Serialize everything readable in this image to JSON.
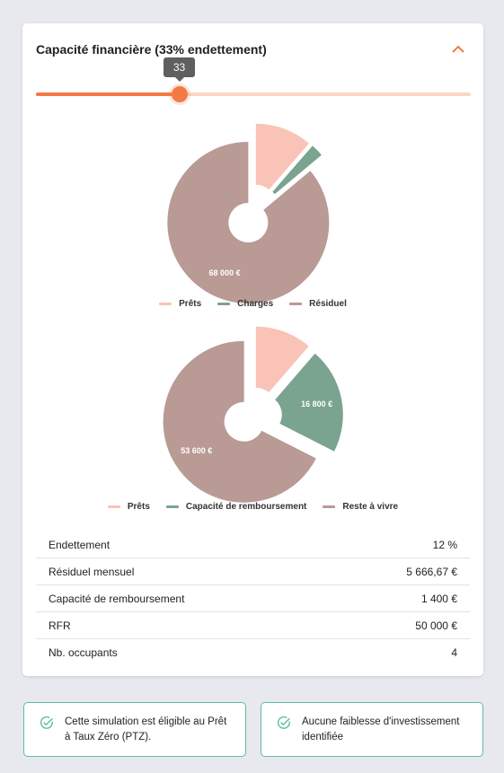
{
  "card": {
    "title": "Capacité financière (33% endettement)",
    "slider": {
      "value": 33,
      "max": 100,
      "tooltip": "33"
    }
  },
  "colors": {
    "accent": "#f47a45",
    "prets": "#f9c3b7",
    "charges": "#7aa390",
    "residuel": "#b99a95",
    "note_border": "#5dbda1"
  },
  "chart_data": [
    {
      "type": "pie",
      "title": "",
      "slices": [
        {
          "name": "Prêts",
          "value": 9000,
          "label": ""
        },
        {
          "name": "Charges",
          "value": 2000,
          "label": ""
        },
        {
          "name": "Résiduel",
          "value": 68000,
          "label": "68 000 €"
        }
      ],
      "legend": [
        "Prêts",
        "Charges",
        "Résiduel"
      ],
      "legend_position": "bottom"
    },
    {
      "type": "pie",
      "title": "",
      "slices": [
        {
          "name": "Prêts",
          "value": 9000,
          "label": ""
        },
        {
          "name": "Capacité de remboursement",
          "value": 16800,
          "label": "16 800 €"
        },
        {
          "name": "Reste à vivre",
          "value": 53600,
          "label": "53 600 €"
        }
      ],
      "legend": [
        "Prêts",
        "Capacité de remboursement",
        "Reste à vivre"
      ],
      "legend_position": "bottom"
    }
  ],
  "stats": [
    {
      "label": "Endettement",
      "value": "12 %"
    },
    {
      "label": "Résiduel mensuel",
      "value": "5 666,67 €"
    },
    {
      "label": "Capacité de remboursement",
      "value": "1 400 €"
    },
    {
      "label": "RFR",
      "value": "50 000 €"
    },
    {
      "label": "Nb. occupants",
      "value": "4"
    }
  ],
  "notes": [
    {
      "text": "Cette simulation est éligible au Prêt à Taux Zéro (PTZ).",
      "icon": "check-circle-icon"
    },
    {
      "text": "Aucune faiblesse d'investissement identifiée",
      "icon": "check-circle-icon"
    }
  ]
}
